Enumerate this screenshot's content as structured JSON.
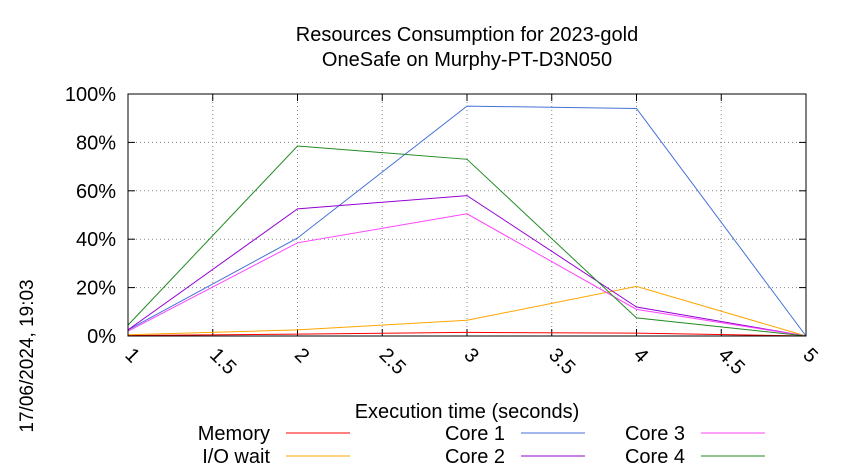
{
  "chart_data": {
    "type": "line",
    "title": "Resources Consumption for 2023-gold",
    "subtitle": "OneSafe on Murphy-PT-D3N050",
    "xlabel": "Execution time (seconds)",
    "ylabel": "",
    "xlim": [
      1,
      5
    ],
    "ylim": [
      0,
      100
    ],
    "x_ticks": [
      "1",
      "1.5",
      "2",
      "2.5",
      "3",
      "3.5",
      "4",
      "4.5",
      "5"
    ],
    "y_ticks": [
      "0%",
      "20%",
      "40%",
      "60%",
      "80%",
      "100%"
    ],
    "grid": true,
    "legend_position": "bottom",
    "timestamp": "17/06/2024, 19:03",
    "series": [
      {
        "name": "Memory",
        "color": "#ff0000",
        "x": [
          1,
          2,
          3,
          4,
          5
        ],
        "y": [
          0.2,
          0.8,
          1.5,
          1.2,
          0
        ]
      },
      {
        "name": "I/O wait",
        "color": "#ffa500",
        "x": [
          1,
          2,
          3,
          4,
          5
        ],
        "y": [
          0.5,
          2.5,
          6.5,
          20.5,
          0
        ]
      },
      {
        "name": "Core 1",
        "color": "#4472d9",
        "x": [
          1,
          2,
          3,
          4,
          5
        ],
        "y": [
          2.5,
          40.5,
          95,
          94,
          0
        ]
      },
      {
        "name": "Core 2",
        "color": "#9400d3",
        "x": [
          1,
          2,
          3,
          4,
          5
        ],
        "y": [
          2.5,
          52.5,
          58,
          12,
          0
        ]
      },
      {
        "name": "Core 3",
        "color": "#ff44ff",
        "x": [
          1,
          2,
          3,
          4,
          5
        ],
        "y": [
          2.0,
          38.5,
          50.5,
          11,
          0
        ]
      },
      {
        "name": "Core 4",
        "color": "#228b22",
        "x": [
          1,
          2,
          3,
          4,
          5
        ],
        "y": [
          4.5,
          78.5,
          73,
          7.5,
          0
        ]
      }
    ]
  }
}
